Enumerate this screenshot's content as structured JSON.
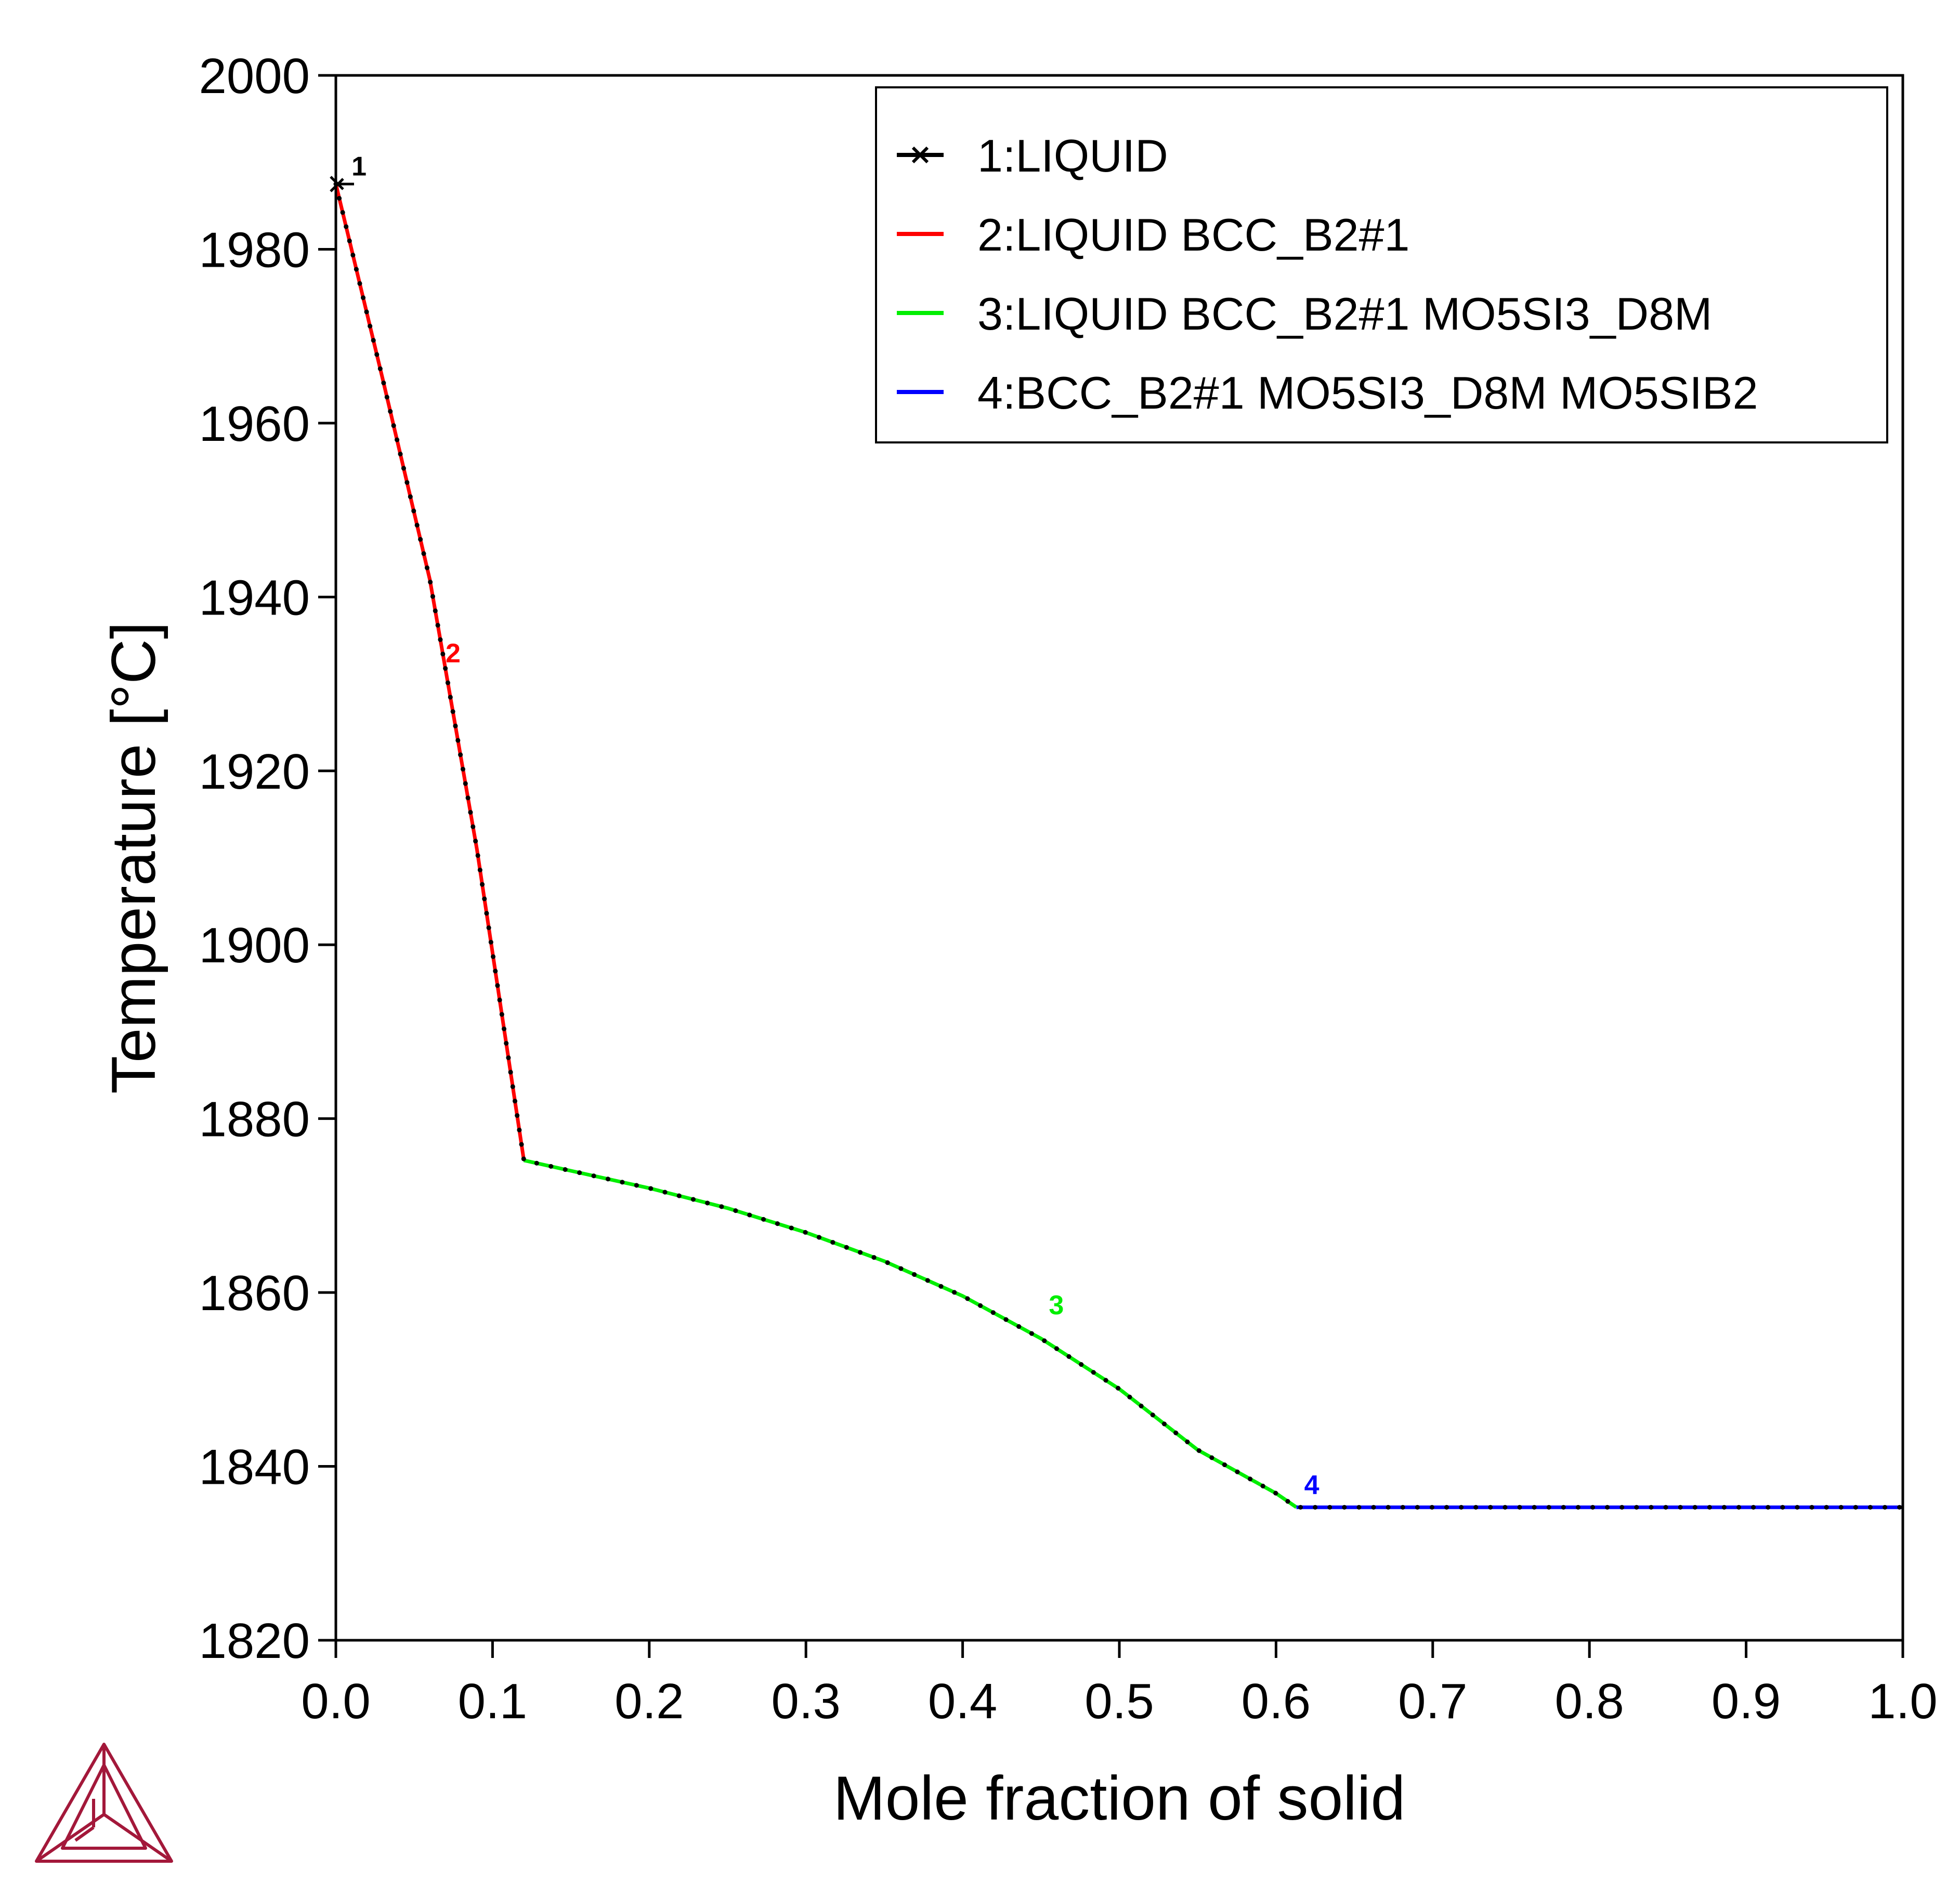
{
  "chart_data": {
    "type": "line",
    "xlabel": "Mole fraction of solid",
    "ylabel": "Temperature [°C]",
    "xlim": [
      0,
      1
    ],
    "ylim": [
      1820,
      2000
    ],
    "x_ticks": [
      "0.0",
      "0.1",
      "0.2",
      "0.3",
      "0.4",
      "0.5",
      "0.6",
      "0.7",
      "0.8",
      "0.9",
      "1.0"
    ],
    "y_ticks": [
      "1820",
      "1840",
      "1860",
      "1880",
      "1900",
      "1920",
      "1940",
      "1960",
      "1980",
      "2000"
    ],
    "grid": false,
    "legend_position": "top-right",
    "series": [
      {
        "name": "1:LIQUID",
        "label": "1",
        "color": "#000000",
        "marker": "x",
        "points": [
          [
            0.0,
            1987.5
          ],
          [
            0.0,
            1987.5
          ]
        ]
      },
      {
        "name": "2:LIQUID BCC_B2#1",
        "label": "2",
        "color": "#ff0000",
        "points": [
          [
            0.0,
            1987.5
          ],
          [
            0.03,
            1965
          ],
          [
            0.06,
            1942
          ],
          [
            0.09,
            1911
          ],
          [
            0.12,
            1875.2
          ]
        ]
      },
      {
        "name": "3:LIQUID BCC_B2#1 MO5SI3_D8M",
        "label": "3",
        "color": "#00ee00",
        "points": [
          [
            0.12,
            1875.2
          ],
          [
            0.15,
            1874.0
          ],
          [
            0.2,
            1872.0
          ],
          [
            0.25,
            1869.7
          ],
          [
            0.3,
            1866.9
          ],
          [
            0.35,
            1863.6
          ],
          [
            0.4,
            1859.6
          ],
          [
            0.45,
            1854.7
          ],
          [
            0.5,
            1848.9
          ],
          [
            0.55,
            1841.9
          ],
          [
            0.6,
            1836.9
          ],
          [
            0.613,
            1835.3
          ]
        ]
      },
      {
        "name": "4:BCC_B2#1 MO5SI3_D8M MO5SIB2",
        "label": "4",
        "color": "#0000ff",
        "points": [
          [
            0.613,
            1835.3
          ],
          [
            1.0,
            1835.3
          ]
        ]
      }
    ]
  }
}
